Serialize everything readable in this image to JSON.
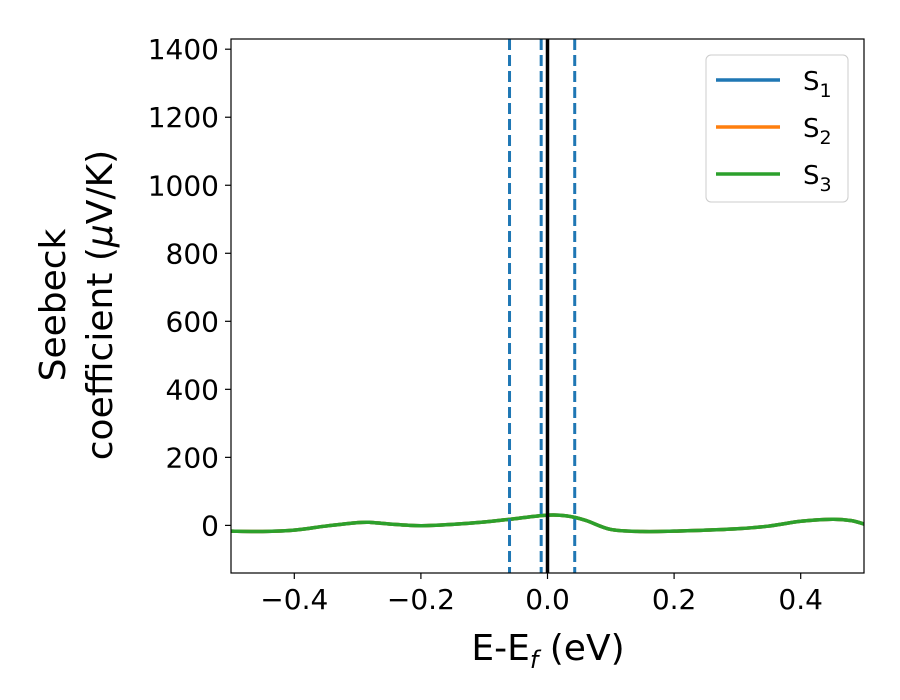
{
  "chart_data": {
    "type": "line",
    "xlabel": {
      "main": "E-E",
      "sub": "f",
      "unit": " (eV)"
    },
    "ylabel": {
      "line1": "Seebeck",
      "line2": "coefficient  (",
      "mu": "μ",
      "line2_end": "V/K)"
    },
    "xlim": [
      -0.5,
      0.5
    ],
    "ylim": [
      -140,
      1430
    ],
    "xticks": [
      -0.4,
      -0.2,
      0.0,
      0.2,
      0.4
    ],
    "xtick_labels": [
      "−0.4",
      "−0.2",
      "0.0",
      "0.2",
      "0.4"
    ],
    "yticks": [
      0,
      200,
      400,
      600,
      800,
      1000,
      1200,
      1400
    ],
    "ytick_labels": [
      "0",
      "200",
      "400",
      "600",
      "800",
      "1000",
      "1200",
      "1400"
    ],
    "grid": false,
    "legend_position": "top-right",
    "x": [
      -0.5,
      -0.45,
      -0.4,
      -0.35,
      -0.3,
      -0.28,
      -0.25,
      -0.2,
      -0.15,
      -0.1,
      -0.05,
      0.0,
      0.03,
      0.06,
      0.1,
      0.15,
      0.2,
      0.25,
      0.3,
      0.35,
      0.4,
      0.45,
      0.48,
      0.5
    ],
    "series": [
      {
        "name": "S",
        "sub": "1",
        "color": "#1f77b4",
        "values": [
          -17,
          -18,
          -14,
          -2,
          8,
          9,
          4,
          -1,
          3,
          10,
          20,
          30,
          28,
          15,
          -12,
          -18,
          -17,
          -14,
          -10,
          -2,
          12,
          18,
          14,
          4
        ]
      },
      {
        "name": "S",
        "sub": "2",
        "color": "#ff7f0e",
        "values": [
          -17,
          -18,
          -14,
          -2,
          8,
          9,
          4,
          -1,
          3,
          10,
          20,
          30,
          28,
          15,
          -12,
          -18,
          -17,
          -14,
          -10,
          -2,
          12,
          18,
          14,
          4
        ]
      },
      {
        "name": "S",
        "sub": "3",
        "color": "#2ca02c",
        "values": [
          -17,
          -18,
          -14,
          -2,
          8,
          9,
          4,
          -1,
          3,
          10,
          20,
          30,
          28,
          15,
          -12,
          -18,
          -17,
          -14,
          -10,
          -2,
          12,
          18,
          14,
          4
        ]
      }
    ],
    "vlines": [
      {
        "x": -0.06,
        "style": "dashed",
        "color": "#1f77b4"
      },
      {
        "x": -0.01,
        "style": "dashed",
        "color": "#1f77b4"
      },
      {
        "x": 0.0,
        "style": "solid",
        "color": "#000000"
      },
      {
        "x": 0.043,
        "style": "dashed",
        "color": "#1f77b4"
      }
    ]
  }
}
